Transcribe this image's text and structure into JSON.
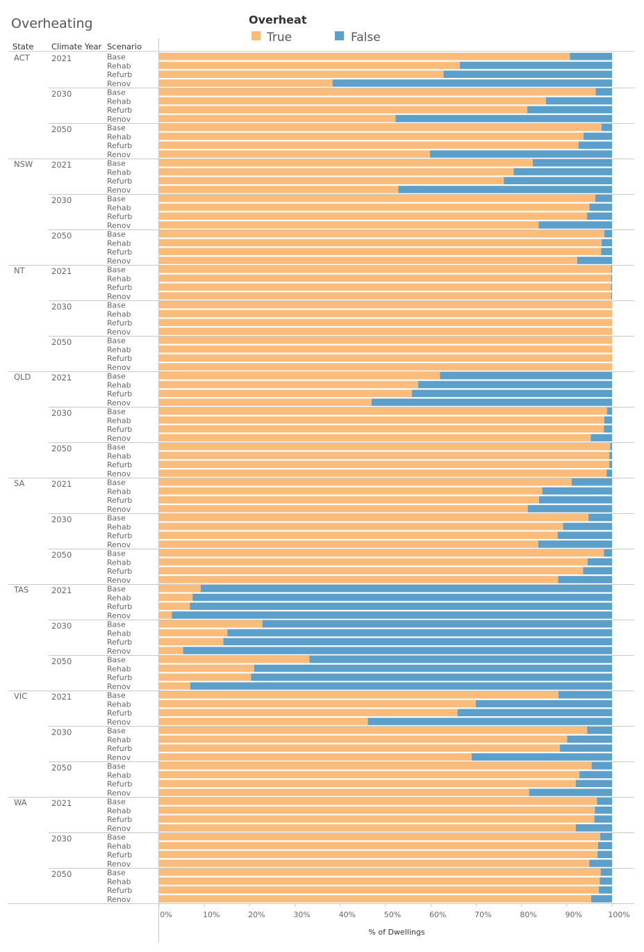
{
  "chart_data": {
    "type": "bar",
    "orientation": "horizontal",
    "stacked": "100%",
    "title": "Overheating",
    "legend": {
      "title": "Overheat",
      "entries": [
        {
          "name": "True",
          "color": "#f9bc7a"
        },
        {
          "name": "False",
          "color": "#5b9fca"
        }
      ]
    },
    "headers": {
      "state": "State",
      "climate_year": "Climate Year",
      "scenario": "Scenario"
    },
    "xlabel": "% of Dwellings",
    "xlim": [
      0,
      100
    ],
    "x_ticks": [
      "0%",
      "10%",
      "20%",
      "30%",
      "40%",
      "50%",
      "60%",
      "70%",
      "80%",
      "90%",
      "100%"
    ],
    "scenarios": [
      "Base",
      "Rehab",
      "Refurb",
      "Renov"
    ],
    "series_note": "values are % True (Overheat); False = 100 - True",
    "states": [
      {
        "state": "ACT",
        "years": [
          {
            "year": "2021",
            "true_pct": [
              90.7,
              66.4,
              62.8,
              38.3
            ]
          },
          {
            "year": "2030",
            "true_pct": [
              96.4,
              85.4,
              81.3,
              52.2
            ]
          },
          {
            "year": "2050",
            "true_pct": [
              97.7,
              93.7,
              92.6,
              59.8
            ]
          }
        ]
      },
      {
        "state": "NSW",
        "years": [
          {
            "year": "2021",
            "true_pct": [
              82.5,
              78.3,
              76.1,
              52.8
            ]
          },
          {
            "year": "2030",
            "true_pct": [
              96.3,
              95.0,
              94.5,
              83.8
            ]
          },
          {
            "year": "2050",
            "true_pct": [
              98.3,
              97.7,
              97.6,
              92.3
            ]
          }
        ]
      },
      {
        "state": "NT",
        "years": [
          {
            "year": "2021",
            "true_pct": [
              99.8,
              99.8,
              99.8,
              99.8
            ]
          },
          {
            "year": "2030",
            "true_pct": [
              100,
              100,
              100,
              100
            ]
          },
          {
            "year": "2050",
            "true_pct": [
              100,
              100,
              100,
              100
            ]
          }
        ]
      },
      {
        "state": "QLD",
        "years": [
          {
            "year": "2021",
            "true_pct": [
              62.0,
              57.2,
              55.8,
              46.9
            ]
          },
          {
            "year": "2030",
            "true_pct": [
              98.9,
              98.3,
              98.2,
              95.3
            ]
          },
          {
            "year": "2050",
            "true_pct": [
              99.6,
              99.4,
              99.4,
              98.8
            ]
          }
        ]
      },
      {
        "state": "SA",
        "years": [
          {
            "year": "2021",
            "true_pct": [
              91.1,
              84.6,
              83.9,
              81.4
            ]
          },
          {
            "year": "2030",
            "true_pct": [
              94.8,
              89.2,
              88.0,
              83.7
            ]
          },
          {
            "year": "2050",
            "true_pct": [
              98.2,
              94.6,
              93.6,
              88.1
            ]
          }
        ]
      },
      {
        "state": "TAS",
        "years": [
          {
            "year": "2021",
            "true_pct": [
              9.2,
              7.4,
              6.8,
              2.8
            ]
          },
          {
            "year": "2030",
            "true_pct": [
              22.8,
              15.1,
              14.2,
              5.3
            ]
          },
          {
            "year": "2050",
            "true_pct": [
              33.2,
              21.0,
              20.3,
              6.9
            ]
          }
        ]
      },
      {
        "state": "VIC",
        "years": [
          {
            "year": "2021",
            "true_pct": [
              88.2,
              69.9,
              65.9,
              46.1
            ]
          },
          {
            "year": "2030",
            "true_pct": [
              94.5,
              90.1,
              88.5,
              69.0
            ]
          },
          {
            "year": "2050",
            "true_pct": [
              95.5,
              92.8,
              92.0,
              81.7
            ]
          }
        ]
      },
      {
        "state": "WA",
        "years": [
          {
            "year": "2021",
            "true_pct": [
              96.7,
              96.2,
              96.1,
              92.0
            ]
          },
          {
            "year": "2030",
            "true_pct": [
              97.4,
              96.9,
              96.8,
              95.0
            ]
          },
          {
            "year": "2050",
            "true_pct": [
              97.5,
              97.3,
              97.1,
              95.4
            ]
          }
        ]
      }
    ]
  }
}
